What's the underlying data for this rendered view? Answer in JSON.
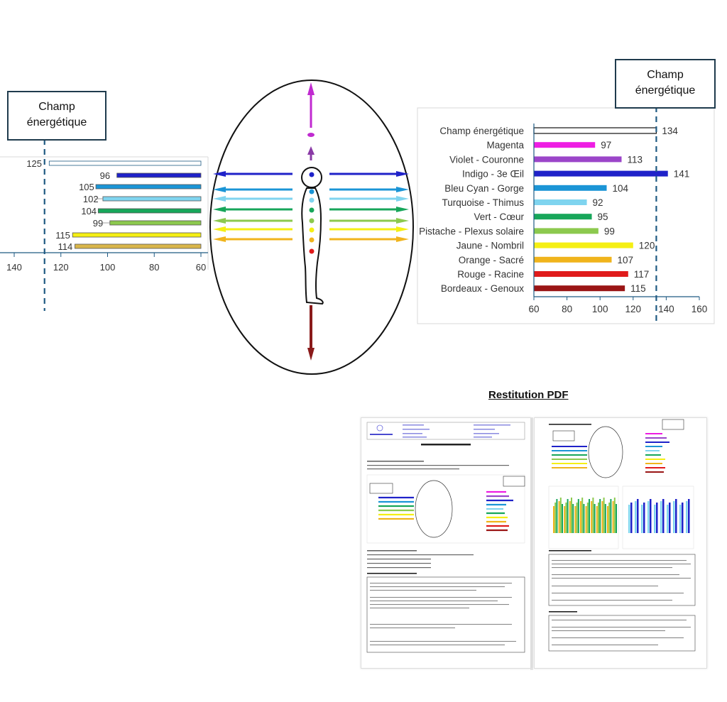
{
  "left_panel": {
    "label": "Champ énergétique"
  },
  "right_panel": {
    "label": "Champ énergétique"
  },
  "pdf": {
    "title": "Restitution PDF"
  },
  "colors": {
    "champ": "#ffffff",
    "magenta": "#ee1de3",
    "violet": "#9b45c9",
    "indigo": "#1f22c9",
    "cyan": "#1b95d6",
    "turquoise": "#7fd4ef",
    "vert": "#17a65a",
    "pistache": "#8cc94e",
    "jaune": "#f5ef14",
    "orange": "#f0b41c",
    "rouge": "#e01b1b",
    "bordeaux": "#9a1515",
    "dashed": "#1f5a82"
  },
  "chart_data": [
    {
      "type": "bar",
      "orientation": "horizontal",
      "categories": [
        "Champ énergétique",
        "Indigo - 3e Œil",
        "Bleu Cyan - Gorge",
        "Turquoise - Thimus",
        "Vert - Cœur",
        "Pistache - Plexus solaire",
        "Jaune - Nombril",
        "Orange - Sacré"
      ],
      "values": [
        125,
        96,
        105,
        102,
        104,
        99,
        115,
        114
      ],
      "colors": [
        "#ffffff",
        "#1f22c9",
        "#1b95d6",
        "#7fd4ef",
        "#17a65a",
        "#8cc94e",
        "#f5ef14",
        "#d9b64a"
      ],
      "xlim": [
        140,
        60
      ],
      "xticks": [
        140,
        120,
        100,
        80,
        60
      ],
      "reference_value": 127,
      "grid": false
    },
    {
      "type": "bar",
      "orientation": "horizontal",
      "categories": [
        "Champ énergétique",
        "Magenta",
        "Violet - Couronne",
        "Indigo - 3e Œil",
        "Bleu Cyan - Gorge",
        "Turquoise - Thimus",
        "Vert - Cœur",
        "Pistache - Plexus solaire",
        "Jaune - Nombril",
        "Orange - Sacré",
        "Rouge - Racine",
        "Bordeaux - Genoux"
      ],
      "values": [
        134,
        97,
        113,
        141,
        104,
        92,
        95,
        99,
        120,
        107,
        117,
        115
      ],
      "colors": [
        "#ffffff",
        "#ee1de3",
        "#9b45c9",
        "#1f22c9",
        "#1b95d6",
        "#7fd4ef",
        "#17a65a",
        "#8cc94e",
        "#f5ef14",
        "#f0b41c",
        "#e01b1b",
        "#9a1515"
      ],
      "xlim": [
        60,
        160
      ],
      "xticks": [
        60,
        80,
        100,
        120,
        140,
        160
      ],
      "reference_value": 134,
      "grid": false
    }
  ]
}
